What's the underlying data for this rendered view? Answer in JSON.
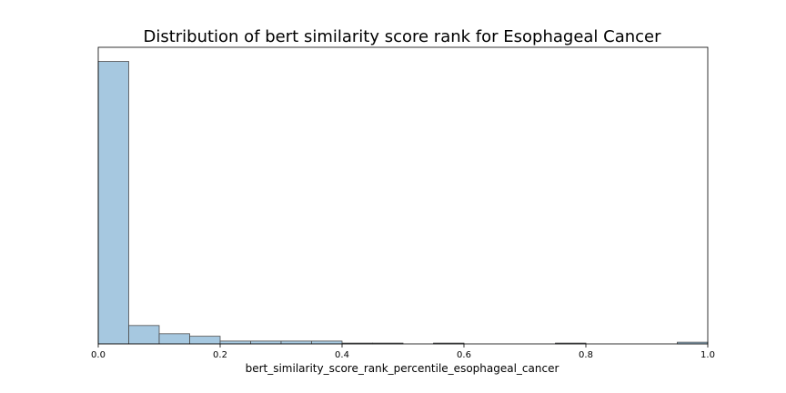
{
  "chart_data": {
    "type": "bar",
    "subtype": "histogram",
    "title": "Distribution of bert similarity score rank for Esophageal Cancer",
    "xlabel": "bert_similarity_score_rank_percentile_esophageal_cancer",
    "ylabel": "",
    "xlim": [
      0,
      1
    ],
    "ylim": [
      0,
      1.05
    ],
    "y_ticks_shown": false,
    "grid": false,
    "bar_color": "#a6c8e0",
    "edge_color": "#4d4d4d",
    "x_ticks": [
      "0.0",
      "0.2",
      "0.4",
      "0.6",
      "0.8",
      "1.0"
    ],
    "x_tick_values": [
      0,
      0.2,
      0.4,
      0.6,
      0.8,
      1.0
    ],
    "bin_width": 0.05,
    "bin_starts": [
      0,
      0.05,
      0.1,
      0.15,
      0.2,
      0.25,
      0.3,
      0.35,
      0.4,
      0.45,
      0.5,
      0.55,
      0.6,
      0.65,
      0.7,
      0.75,
      0.8,
      0.85,
      0.9,
      0.95
    ],
    "values": [
      1.0,
      0.065,
      0.036,
      0.027,
      0.01,
      0.01,
      0.01,
      0.01,
      0.003,
      0.003,
      0.0,
      0.003,
      0.0,
      0.0,
      0.0,
      0.003,
      0.0,
      0.0,
      0.0,
      0.006
    ]
  }
}
